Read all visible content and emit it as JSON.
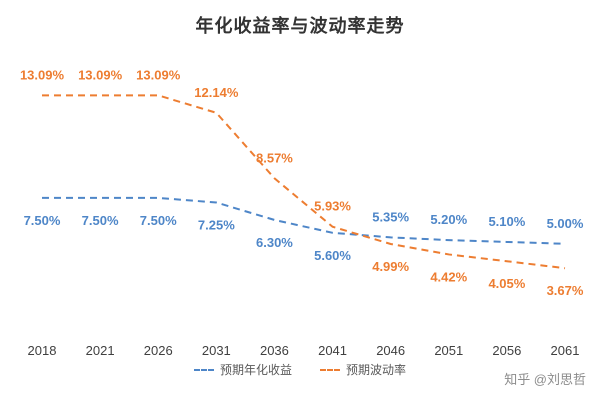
{
  "chart_data": {
    "type": "line",
    "title": "年化收益率与波动率走势",
    "categories": [
      "2018",
      "2021",
      "2026",
      "2031",
      "2036",
      "2041",
      "2046",
      "2051",
      "2056",
      "2061"
    ],
    "series": [
      {
        "key": "expected-annualized-return",
        "name": "预期年化收益",
        "color": "#4e86c8",
        "values": [
          7.5,
          7.5,
          7.5,
          7.25,
          6.3,
          5.6,
          5.35,
          5.2,
          5.1,
          5.0
        ],
        "labels": [
          "7.50%",
          "7.50%",
          "7.50%",
          "7.25%",
          "6.30%",
          "5.60%",
          "5.35%",
          "5.20%",
          "5.10%",
          "5.00%"
        ],
        "label_side": [
          "below",
          "below",
          "below",
          "below",
          "below",
          "below",
          "above",
          "above",
          "above",
          "above"
        ]
      },
      {
        "key": "expected-volatility",
        "name": "预期波动率",
        "color": "#ed7d31",
        "values": [
          13.09,
          13.09,
          13.09,
          12.14,
          8.57,
          5.93,
          4.99,
          4.42,
          4.05,
          3.67
        ],
        "labels": [
          "13.09%",
          "13.09%",
          "13.09%",
          "12.14%",
          "8.57%",
          "5.93%",
          "4.99%",
          "4.42%",
          "4.05%",
          "3.67%"
        ],
        "label_side": [
          "above",
          "above",
          "above",
          "above",
          "above",
          "above",
          "below",
          "below",
          "below",
          "below"
        ]
      }
    ],
    "ylim": [
      2.7,
      14.2
    ],
    "grid": false,
    "line_style": "dashed",
    "legend_position": "bottom"
  },
  "watermark": "知乎 @刘思哲"
}
